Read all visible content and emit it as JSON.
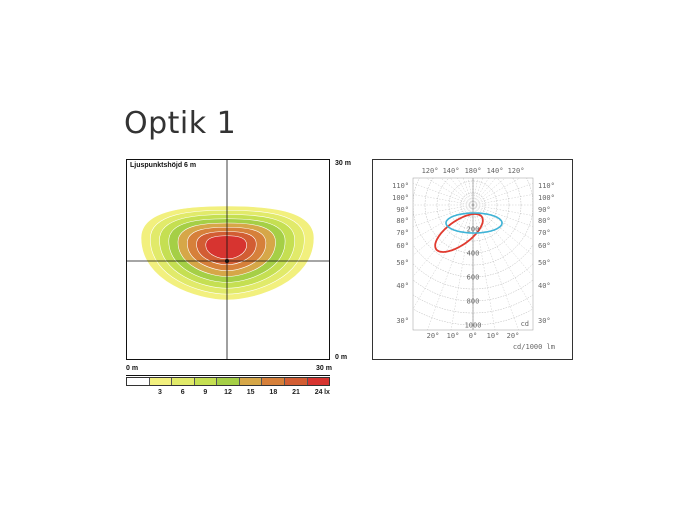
{
  "title": "Optik 1",
  "chart_data": [
    {
      "type": "heatmap",
      "caption": "Ljuspunktshöjd 6 m",
      "y_top_label": "30 m",
      "y_bottom_label": "0 m",
      "x_left_label": "0 m",
      "x_right_label": "30 m",
      "legend_unit": "lx",
      "legend_thresholds": [
        3,
        6,
        9,
        12,
        15,
        18,
        21,
        24
      ],
      "legend_colors": [
        "#ffffff",
        "#f2f07e",
        "#e1ea6a",
        "#c5df52",
        "#a5cf46",
        "#d6a748",
        "#d6803a",
        "#d25d33",
        "#d73430"
      ]
    },
    {
      "type": "polar",
      "top_angle_labels": [
        "120°",
        "140°",
        "180°",
        "140°",
        "120°"
      ],
      "side_angle_labels": [
        "110°",
        "100°",
        "90°",
        "80°",
        "70°",
        "60°",
        "50°",
        "40°",
        "30°"
      ],
      "bottom_angle_labels": [
        "20°",
        "10°",
        "0°",
        "10°",
        "20°"
      ],
      "radial_labels": [
        "200",
        "400",
        "600",
        "800",
        "1000"
      ],
      "unit_label": "cd/1000 lm",
      "corner_label": "cd",
      "series": [
        {
          "color": "#e03a2f"
        },
        {
          "color": "#3fb3d6"
        }
      ]
    }
  ]
}
